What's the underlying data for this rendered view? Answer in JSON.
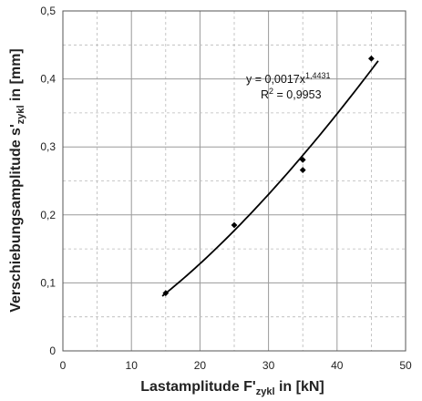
{
  "chart_data": {
    "type": "scatter",
    "xlabel": {
      "main": "Lastamplitude F'",
      "sub": "zykl",
      "rest": " in [kN]"
    },
    "ylabel": {
      "main": "Verschiebungsamplitude s'",
      "sub": "zykl",
      "rest": " in [mm]"
    },
    "xlim": [
      0,
      50
    ],
    "ylim": [
      0,
      0.5
    ],
    "x_ticks": [
      "0",
      "10",
      "20",
      "30",
      "40",
      "50"
    ],
    "y_ticks": [
      "0",
      "0,1",
      "0,2",
      "0,3",
      "0,4",
      "0,5"
    ],
    "grid": true,
    "points": [
      {
        "x": 15,
        "y": 0.085
      },
      {
        "x": 25,
        "y": 0.185
      },
      {
        "x": 35,
        "y": 0.281
      },
      {
        "x": 35,
        "y": 0.266
      },
      {
        "x": 45,
        "y": 0.43
      }
    ],
    "trendline": {
      "type": "power",
      "coefficient": 0.0017,
      "exponent": 1.4431,
      "x_range": [
        14.5,
        46
      ],
      "equation_prefix": "y = 0,0017x",
      "equation_exponent": "1,4431",
      "r2_prefix": "R",
      "r2_exponent": "2",
      "r2_value": " = 0,9953"
    },
    "colors": {
      "marker": "#000000",
      "line": "#000000",
      "grid": "#9a9a9a"
    }
  }
}
